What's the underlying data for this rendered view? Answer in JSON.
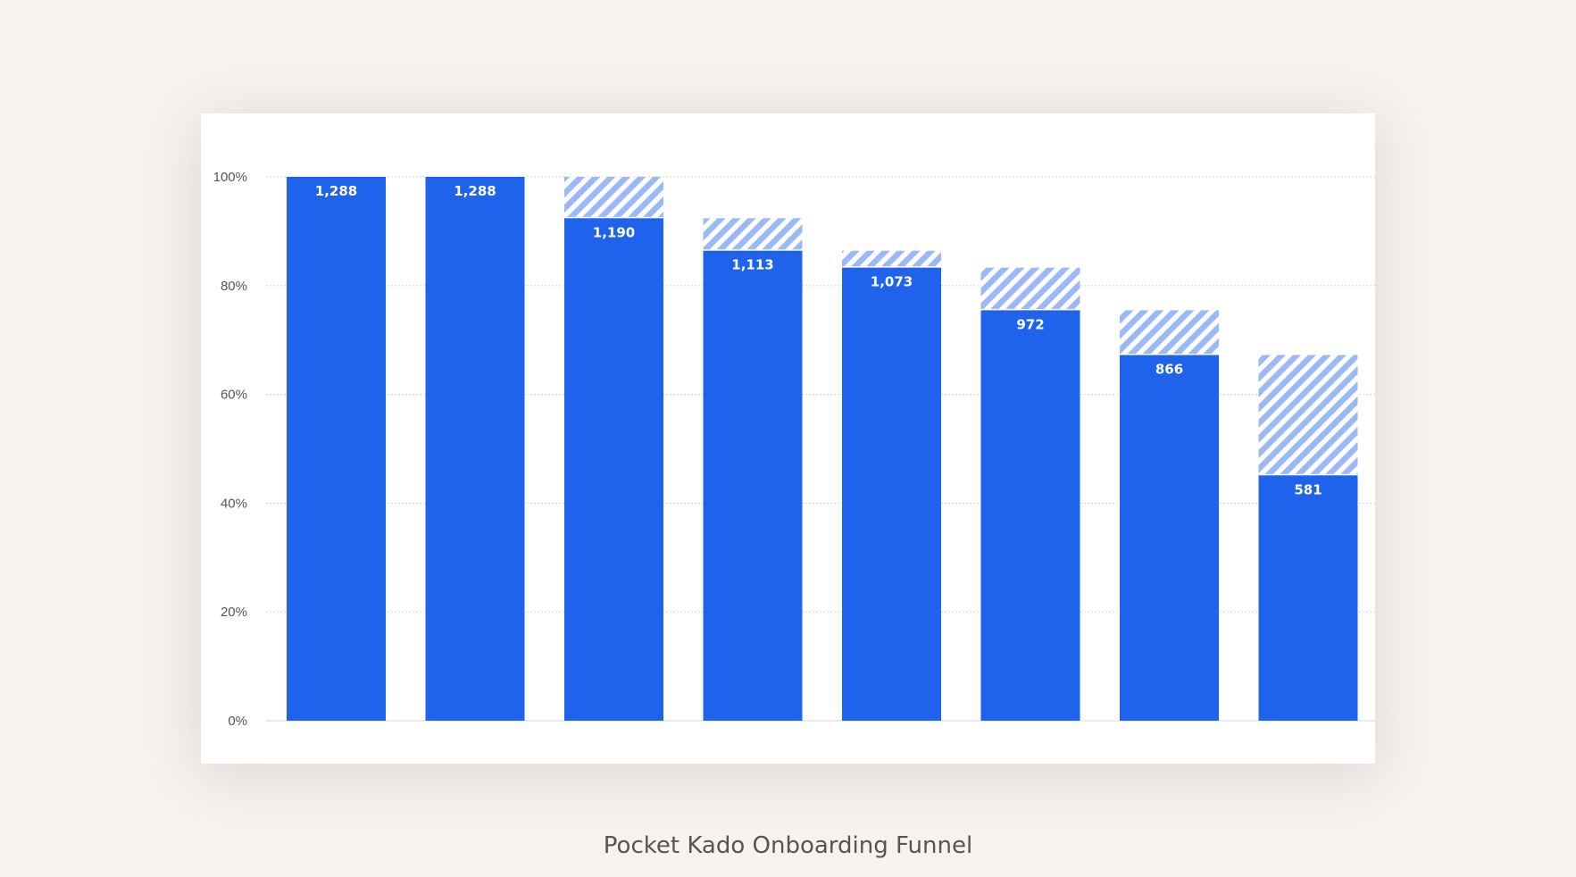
{
  "caption": "Pocket Kado Onboarding Funnel",
  "colors": {
    "bar": "#1f62ec",
    "dropoff_stripe": "#9ab9f5",
    "gridline": "#d6d6d6",
    "axis_text": "#555555",
    "label_text": "#ffffff"
  },
  "chart_data": {
    "type": "bar",
    "stacked_dropoff": true,
    "title": "",
    "xlabel": "",
    "ylabel": "",
    "ylim": [
      0,
      100
    ],
    "y_ticks": [
      "0%",
      "20%",
      "40%",
      "60%",
      "80%",
      "100%"
    ],
    "y_tick_values": [
      0,
      20,
      40,
      60,
      80,
      100
    ],
    "grid": true,
    "values": [
      1288,
      1288,
      1190,
      1113,
      1073,
      972,
      866,
      581
    ],
    "value_labels": [
      "1,288",
      "1,288",
      "1,190",
      "1,113",
      "1,073",
      "972",
      "866",
      "581"
    ],
    "percent_of_first": [
      100,
      100,
      92.4,
      86.4,
      83.3,
      75.5,
      67.2,
      45.1
    ],
    "dropoff_from_previous_percent": [
      0,
      0,
      7.6,
      6.0,
      3.1,
      7.8,
      8.2,
      22.1
    ]
  }
}
